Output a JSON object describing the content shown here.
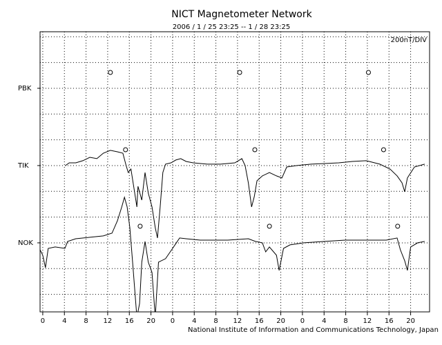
{
  "chart_data": {
    "type": "line",
    "title": "NICT Magnetometer Network",
    "subtitle": "2006 / 1 / 25  23:25 -- 1 / 28  23:25",
    "scale_label": "200nT/DIV",
    "footer": "National Institute of Information and Communications Technology, Japan",
    "xlim": [
      -0.5,
      71.5
    ],
    "xticks": [
      0,
      4,
      8,
      12,
      16,
      20,
      {
        "value": 24,
        "label": "0"
      },
      {
        "value": 28,
        "label": "4"
      },
      {
        "value": 32,
        "label": "8"
      },
      {
        "value": 36,
        "label": "12"
      },
      {
        "value": 40,
        "label": "16"
      },
      {
        "value": 44,
        "label": "20"
      },
      {
        "value": 48,
        "label": "0"
      },
      {
        "value": 52,
        "label": "4"
      },
      {
        "value": 56,
        "label": "8"
      },
      {
        "value": 60,
        "label": "12"
      },
      {
        "value": 64,
        "label": "16"
      },
      {
        "value": 68,
        "label": "20"
      }
    ],
    "ylim": [
      -536,
      1639
    ],
    "yticks": [
      {
        "value": 1200,
        "label": "PBK"
      },
      {
        "value": 600,
        "label": "TIK"
      },
      {
        "value": 0,
        "label": "NOK"
      }
    ],
    "ygrid": [
      -400,
      -200,
      0,
      200,
      400,
      600,
      800,
      1000,
      1200,
      1400,
      1600
    ],
    "grid": true,
    "series": [
      {
        "color": "#000000",
        "x": [
          4.2,
          4.9,
          6.1,
          7.4,
          8.7,
          10.0,
          11.2,
          12.5,
          13.8,
          14.8,
          15.4,
          15.8,
          16.3,
          17.0,
          17.4,
          17.6,
          18.3,
          18.9,
          19.5,
          20.2,
          20.8,
          21.2,
          21.7,
          22.2,
          22.7,
          23.7,
          24.6,
          25.5,
          26.5,
          27.8,
          30.4,
          32.9,
          35.5,
          36.8,
          37.4,
          38.0,
          38.6,
          39.1,
          39.6,
          40.6,
          41.9,
          43.2,
          44.2,
          45.1,
          47.0,
          49.6,
          52.1,
          54.7,
          57.2,
          59.8,
          62.3,
          64.2,
          65.5,
          66.4,
          66.9,
          67.4,
          68.7,
          70.6
        ],
        "values": [
          600,
          621,
          621,
          638,
          664,
          654,
          696,
          718,
          707,
          696,
          600,
          546,
          573,
          386,
          279,
          439,
          332,
          546,
          386,
          279,
          118,
          38,
          279,
          546,
          611,
          621,
          643,
          654,
          632,
          621,
          611,
          611,
          621,
          654,
          600,
          466,
          279,
          359,
          482,
          520,
          546,
          520,
          504,
          589,
          600,
          611,
          616,
          621,
          632,
          638,
          611,
          573,
          520,
          466,
          396,
          504,
          589,
          611
        ]
      },
      {
        "color": "#000000",
        "x": [
          -0.5,
          0,
          0.5,
          1.0,
          2.3,
          4.1,
          4.6,
          6.1,
          8.7,
          11.2,
          12.8,
          13.8,
          14.6,
          15.1,
          15.6,
          16.1,
          16.6,
          17.0,
          17.4,
          17.9,
          18.3,
          18.9,
          19.5,
          20.2,
          20.8,
          21.4,
          22.7,
          24.0,
          25.3,
          26.5,
          29.1,
          31.7,
          34.2,
          38.0,
          39.3,
          40.6,
          41.2,
          41.9,
          43.2,
          43.7,
          44.5,
          45.7,
          48.3,
          52.1,
          55.9,
          59.8,
          63.5,
          65.5,
          66.1,
          66.9,
          67.4,
          68.0,
          69.3,
          70.6
        ],
        "values": [
          -54,
          -96,
          -193,
          -43,
          -32,
          -43,
          11,
          32,
          43,
          54,
          75,
          171,
          279,
          354,
          279,
          118,
          -150,
          -364,
          -579,
          -471,
          -150,
          11,
          -150,
          -230,
          -579,
          -150,
          -123,
          -43,
          38,
          32,
          21,
          21,
          21,
          32,
          11,
          0,
          -70,
          -32,
          -96,
          -214,
          -43,
          -16,
          0,
          11,
          21,
          21,
          21,
          38,
          -54,
          -139,
          -214,
          -32,
          0,
          11
        ]
      }
    ],
    "markers": {
      "x": [
        12.5,
        36.4,
        60.2,
        15.3,
        39.2,
        63.0,
        18.0,
        41.9,
        65.6
      ],
      "values": [
        1323,
        1323,
        1323,
        723,
        723,
        723,
        129,
        129,
        129
      ]
    }
  }
}
